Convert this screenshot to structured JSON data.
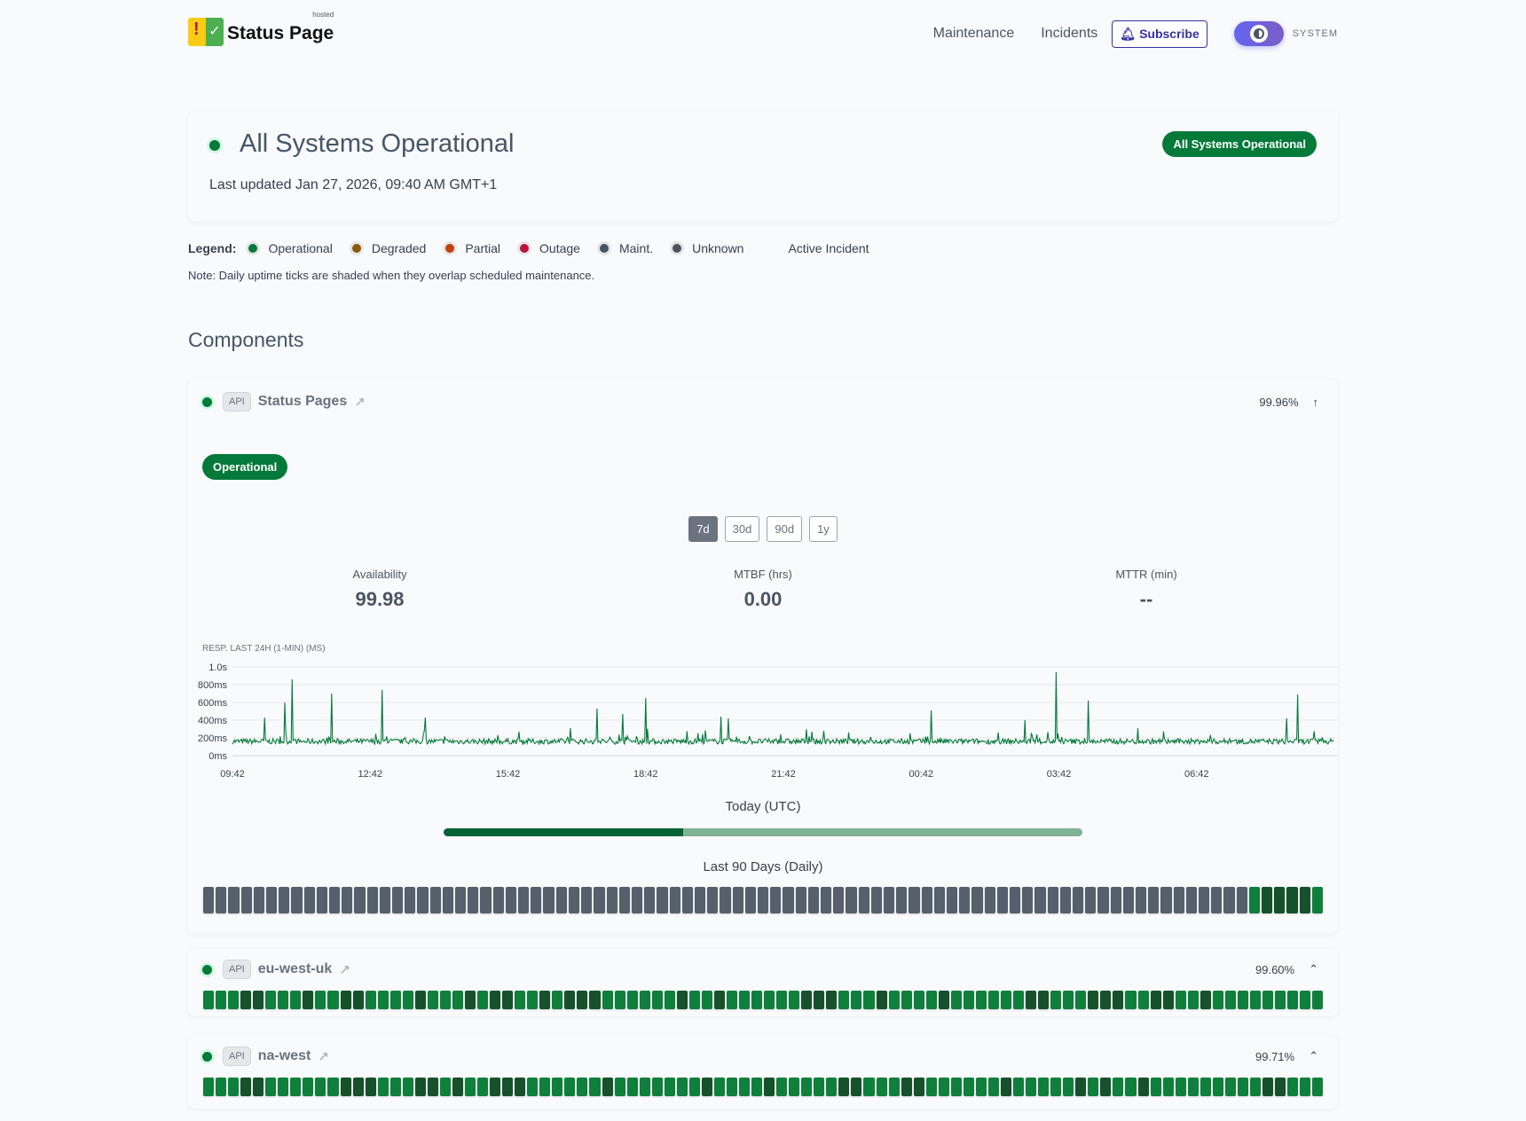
{
  "header": {
    "logo_text": "Status Page",
    "logo_hosted": "hosted",
    "nav": [
      "Maintenance",
      "Incidents"
    ],
    "subscribe": "Subscribe",
    "theme": "SYSTEM"
  },
  "hero": {
    "title": "All Systems Operational",
    "updated": "Last updated Jan 27, 2026, 09:40 AM GMT+1",
    "badge": "All Systems Operational"
  },
  "legend": {
    "label": "Legend:",
    "items": [
      {
        "label": "Operational",
        "color": "#047a3a"
      },
      {
        "label": "Degraded",
        "color": "#8a5a0b"
      },
      {
        "label": "Partial",
        "color": "#c2410c"
      },
      {
        "label": "Outage",
        "color": "#be123c"
      },
      {
        "label": "Maint.",
        "color": "#475569"
      },
      {
        "label": "Unknown",
        "color": "#4b5563"
      }
    ],
    "active_incident": "Active Incident"
  },
  "note": "Note: Daily uptime ticks are shaded when they overlap scheduled maintenance.",
  "components_title": "Components",
  "colors": {
    "unknown": "#565f6c",
    "light": "#0f7f3c",
    "dark": "#16512b",
    "accent": "#047a3a"
  },
  "components": [
    {
      "tag": "API",
      "name": "Status Pages",
      "uptime": "99.96%",
      "caret": "↑",
      "status": "Operational",
      "ranges": [
        "7d",
        "30d",
        "90d",
        "1y"
      ],
      "active_range": "7d",
      "metrics": [
        {
          "label": "Availability",
          "value": "99.98"
        },
        {
          "label": "MTBF (hrs)",
          "value": "0.00"
        },
        {
          "label": "MTTR (min)",
          "value": "--"
        }
      ],
      "today_label": "Today (UTC)",
      "today_fraction": 0.375,
      "last90_label": "Last 90 Days (Daily)",
      "days": "uuuuuuuuuuuuuuuuuuuuuuuuuuuuuuuuuuuuuuuuuuuuuuuuuuuuuuuuuuuuuuuuuuuuuuuuuuuuuuuuuuulddddl"
    },
    {
      "tag": "API",
      "name": "eu-west-uk",
      "uptime": "99.60%",
      "caret": "⌃",
      "days": "lllddllldllddlllldllldlddlldldddlllllldlldlllllldddllldlllldllllllddllldddllddlldlllllllll"
    },
    {
      "tag": "API",
      "name": "na-west",
      "uptime": "99.71%",
      "caret": "⌃",
      "days": "lllddlllllldddlllddldlldddlllllldllllllldlllldlllllddlllddlllllldllllldldlldlllllllllddlll"
    }
  ],
  "chart_data": {
    "type": "line",
    "title": "RESP. LAST 24H (1-MIN) (MS)",
    "y_ticks": [
      "0ms",
      "200ms",
      "400ms",
      "600ms",
      "800ms",
      "1.0s"
    ],
    "ylim": [
      0,
      1000
    ],
    "x_ticks": [
      "09:42",
      "12:42",
      "15:42",
      "18:42",
      "21:42",
      "00:42",
      "03:42",
      "06:42"
    ],
    "baseline_ms": [
      130,
      230
    ],
    "spikes": [
      {
        "t": "10:24",
        "ms": 430
      },
      {
        "t": "10:50",
        "ms": 600
      },
      {
        "t": "11:00",
        "ms": 860
      },
      {
        "t": "11:52",
        "ms": 700
      },
      {
        "t": "12:57",
        "ms": 740
      },
      {
        "t": "13:54",
        "ms": 430
      },
      {
        "t": "17:38",
        "ms": 530
      },
      {
        "t": "18:12",
        "ms": 470
      },
      {
        "t": "18:42",
        "ms": 650
      },
      {
        "t": "20:20",
        "ms": 440
      },
      {
        "t": "20:30",
        "ms": 420
      },
      {
        "t": "00:55",
        "ms": 510
      },
      {
        "t": "02:57",
        "ms": 400
      },
      {
        "t": "03:38",
        "ms": 940
      },
      {
        "t": "04:20",
        "ms": 620
      },
      {
        "t": "08:40",
        "ms": 420
      },
      {
        "t": "08:54",
        "ms": 690
      }
    ],
    "color": "#047a3a"
  }
}
